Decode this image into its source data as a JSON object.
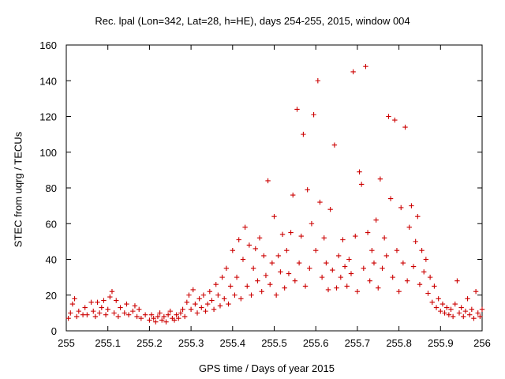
{
  "chart_data": {
    "type": "scatter",
    "title": "Rec. lpal (Lon=342, Lat=28, h=HE), days 254-255, 2015, window 004",
    "xlabel": "GPS time / Days of year 2015",
    "ylabel": "STEC from uqrg / TECUs",
    "xlim": [
      255,
      256
    ],
    "ylim": [
      0,
      160
    ],
    "x_ticks": [
      255,
      255.1,
      255.2,
      255.3,
      255.4,
      255.5,
      255.6,
      255.7,
      255.8,
      255.9,
      256
    ],
    "x_tick_labels": [
      "255",
      "255.1",
      "255.2",
      "255.3",
      "255.4",
      "255.5",
      "255.6",
      "255.7",
      "255.8",
      "255.9",
      "256"
    ],
    "y_ticks": [
      0,
      20,
      40,
      60,
      80,
      100,
      120,
      140,
      160
    ],
    "y_tick_labels": [
      "0",
      "20",
      "40",
      "60",
      "80",
      "100",
      "120",
      "140",
      "160"
    ],
    "grid": false,
    "marker": "+",
    "color": "#cc0000",
    "series": [
      {
        "points": [
          [
            255.005,
            7
          ],
          [
            255.01,
            10
          ],
          [
            255.015,
            15
          ],
          [
            255.02,
            18
          ],
          [
            255.025,
            8
          ],
          [
            255.03,
            11
          ],
          [
            255.04,
            9
          ],
          [
            255.045,
            13
          ],
          [
            255.05,
            9
          ],
          [
            255.06,
            16
          ],
          [
            255.065,
            11
          ],
          [
            255.07,
            8
          ],
          [
            255.075,
            16
          ],
          [
            255.08,
            10
          ],
          [
            255.085,
            13
          ],
          [
            255.09,
            17
          ],
          [
            255.095,
            9
          ],
          [
            255.1,
            12
          ],
          [
            255.105,
            19
          ],
          [
            255.11,
            22
          ],
          [
            255.115,
            10
          ],
          [
            255.12,
            17
          ],
          [
            255.125,
            8
          ],
          [
            255.13,
            13
          ],
          [
            255.14,
            10
          ],
          [
            255.145,
            15
          ],
          [
            255.15,
            9
          ],
          [
            255.16,
            11
          ],
          [
            255.165,
            14
          ],
          [
            255.17,
            8
          ],
          [
            255.175,
            12
          ],
          [
            255.18,
            7
          ],
          [
            255.19,
            9
          ],
          [
            255.2,
            6
          ],
          [
            255.205,
            9
          ],
          [
            255.21,
            7
          ],
          [
            255.215,
            5
          ],
          [
            255.22,
            8
          ],
          [
            255.225,
            10
          ],
          [
            255.23,
            6
          ],
          [
            255.235,
            8
          ],
          [
            255.24,
            5
          ],
          [
            255.245,
            9
          ],
          [
            255.25,
            11
          ],
          [
            255.255,
            7
          ],
          [
            255.26,
            6
          ],
          [
            255.265,
            9
          ],
          [
            255.27,
            7
          ],
          [
            255.275,
            10
          ],
          [
            255.28,
            12
          ],
          [
            255.285,
            8
          ],
          [
            255.29,
            16
          ],
          [
            255.295,
            20
          ],
          [
            255.3,
            12
          ],
          [
            255.305,
            23
          ],
          [
            255.31,
            15
          ],
          [
            255.315,
            10
          ],
          [
            255.32,
            18
          ],
          [
            255.325,
            13
          ],
          [
            255.33,
            20
          ],
          [
            255.335,
            11
          ],
          [
            255.34,
            15
          ],
          [
            255.345,
            22
          ],
          [
            255.35,
            17
          ],
          [
            255.355,
            12
          ],
          [
            255.36,
            26
          ],
          [
            255.365,
            20
          ],
          [
            255.37,
            14
          ],
          [
            255.375,
            30
          ],
          [
            255.38,
            18
          ],
          [
            255.385,
            35
          ],
          [
            255.39,
            15
          ],
          [
            255.395,
            25
          ],
          [
            255.4,
            45
          ],
          [
            255.405,
            20
          ],
          [
            255.41,
            30
          ],
          [
            255.415,
            51
          ],
          [
            255.42,
            18
          ],
          [
            255.425,
            40
          ],
          [
            255.43,
            58
          ],
          [
            255.435,
            25
          ],
          [
            255.44,
            48
          ],
          [
            255.445,
            20
          ],
          [
            255.45,
            35
          ],
          [
            255.455,
            46
          ],
          [
            255.46,
            28
          ],
          [
            255.465,
            52
          ],
          [
            255.47,
            22
          ],
          [
            255.475,
            42
          ],
          [
            255.48,
            31
          ],
          [
            255.485,
            84
          ],
          [
            255.49,
            26
          ],
          [
            255.495,
            38
          ],
          [
            255.5,
            64
          ],
          [
            255.505,
            20
          ],
          [
            255.51,
            42
          ],
          [
            255.515,
            33
          ],
          [
            255.52,
            54
          ],
          [
            255.525,
            24
          ],
          [
            255.53,
            45
          ],
          [
            255.535,
            32
          ],
          [
            255.54,
            55
          ],
          [
            255.545,
            76
          ],
          [
            255.55,
            28
          ],
          [
            255.555,
            124
          ],
          [
            255.56,
            38
          ],
          [
            255.565,
            53
          ],
          [
            255.57,
            110
          ],
          [
            255.575,
            25
          ],
          [
            255.58,
            79
          ],
          [
            255.585,
            35
          ],
          [
            255.59,
            60
          ],
          [
            255.595,
            121
          ],
          [
            255.6,
            45
          ],
          [
            255.605,
            140
          ],
          [
            255.61,
            72
          ],
          [
            255.615,
            30
          ],
          [
            255.62,
            52
          ],
          [
            255.625,
            38
          ],
          [
            255.63,
            23
          ],
          [
            255.635,
            68
          ],
          [
            255.64,
            34
          ],
          [
            255.645,
            104
          ],
          [
            255.65,
            24
          ],
          [
            255.655,
            42
          ],
          [
            255.66,
            30
          ],
          [
            255.665,
            51
          ],
          [
            255.67,
            36
          ],
          [
            255.675,
            25
          ],
          [
            255.68,
            40
          ],
          [
            255.685,
            32
          ],
          [
            255.69,
            145
          ],
          [
            255.695,
            53
          ],
          [
            255.7,
            22
          ],
          [
            255.705,
            89
          ],
          [
            255.71,
            82
          ],
          [
            255.715,
            35
          ],
          [
            255.72,
            148
          ],
          [
            255.725,
            55
          ],
          [
            255.73,
            28
          ],
          [
            255.735,
            45
          ],
          [
            255.74,
            38
          ],
          [
            255.745,
            62
          ],
          [
            255.75,
            24
          ],
          [
            255.755,
            85
          ],
          [
            255.76,
            35
          ],
          [
            255.765,
            52
          ],
          [
            255.77,
            42
          ],
          [
            255.775,
            120
          ],
          [
            255.78,
            74
          ],
          [
            255.785,
            30
          ],
          [
            255.79,
            118
          ],
          [
            255.795,
            45
          ],
          [
            255.8,
            22
          ],
          [
            255.805,
            69
          ],
          [
            255.81,
            38
          ],
          [
            255.815,
            114
          ],
          [
            255.82,
            28
          ],
          [
            255.825,
            58
          ],
          [
            255.83,
            70
          ],
          [
            255.835,
            36
          ],
          [
            255.84,
            50
          ],
          [
            255.845,
            64
          ],
          [
            255.85,
            26
          ],
          [
            255.855,
            45
          ],
          [
            255.86,
            33
          ],
          [
            255.865,
            40
          ],
          [
            255.87,
            21
          ],
          [
            255.875,
            30
          ],
          [
            255.88,
            16
          ],
          [
            255.885,
            25
          ],
          [
            255.89,
            13
          ],
          [
            255.895,
            18
          ],
          [
            255.9,
            11
          ],
          [
            255.905,
            15
          ],
          [
            255.91,
            10
          ],
          [
            255.915,
            13
          ],
          [
            255.92,
            9
          ],
          [
            255.925,
            12
          ],
          [
            255.93,
            8
          ],
          [
            255.935,
            15
          ],
          [
            255.94,
            28
          ],
          [
            255.945,
            10
          ],
          [
            255.95,
            13
          ],
          [
            255.955,
            8
          ],
          [
            255.96,
            11
          ],
          [
            255.965,
            18
          ],
          [
            255.97,
            9
          ],
          [
            255.975,
            12
          ],
          [
            255.98,
            7
          ],
          [
            255.985,
            22
          ],
          [
            255.99,
            10
          ],
          [
            255.995,
            8
          ],
          [
            256.0,
            12
          ]
        ]
      }
    ]
  }
}
